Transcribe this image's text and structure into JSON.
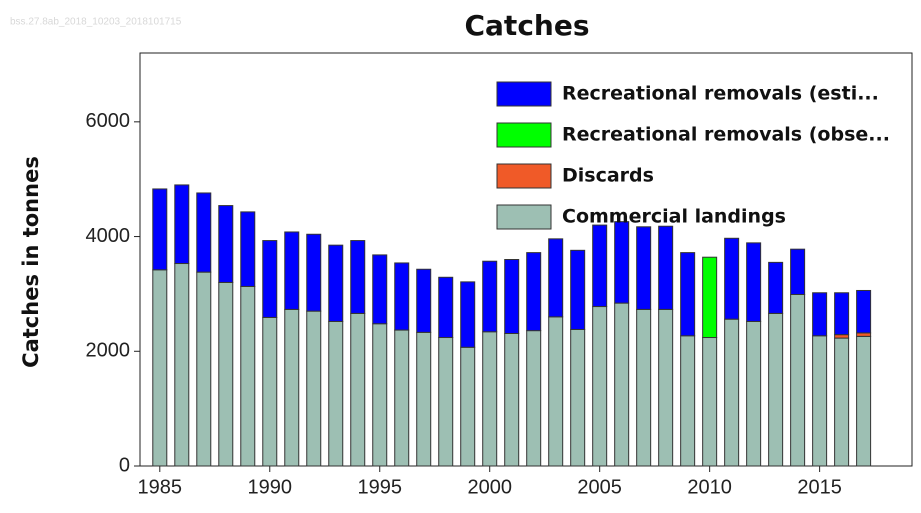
{
  "chart_data": {
    "type": "stacked-bar",
    "title": "Catches",
    "subtitle": "bss.27.8ab_2018_10203_2018101715",
    "y_label": "Catches in tonnes",
    "x": [
      1985,
      1986,
      1987,
      1988,
      1989,
      1990,
      1991,
      1992,
      1993,
      1994,
      1995,
      1996,
      1997,
      1998,
      1999,
      2000,
      2001,
      2002,
      2003,
      2004,
      2005,
      2006,
      2007,
      2008,
      2009,
      2010,
      2011,
      2012,
      2013,
      2014,
      2015,
      2016,
      2017
    ],
    "xlim": [
      1984.1,
      2019.2
    ],
    "xticks": [
      1985,
      1990,
      1995,
      2000,
      2005,
      2010,
      2015
    ],
    "ylim": [
      0,
      7200
    ],
    "yticks": [
      0,
      2000,
      4000,
      6000
    ],
    "legend": "top-right",
    "series": [
      {
        "name": "Commercial landings",
        "color": "#9dbfb3",
        "values": [
          3420,
          3530,
          3380,
          3200,
          3130,
          2590,
          2730,
          2700,
          2520,
          2660,
          2480,
          2370,
          2330,
          2240,
          2070,
          2340,
          2310,
          2360,
          2600,
          2380,
          2780,
          2840,
          2730,
          2730,
          2270,
          2240,
          2560,
          2520,
          2660,
          2990,
          2270,
          2230,
          2260
        ]
      },
      {
        "name": "Discards",
        "color": "#f05a28",
        "values": [
          0,
          0,
          0,
          0,
          0,
          0,
          0,
          0,
          0,
          0,
          0,
          0,
          0,
          0,
          0,
          0,
          0,
          0,
          0,
          0,
          0,
          0,
          0,
          0,
          0,
          0,
          0,
          0,
          0,
          0,
          0,
          60,
          60
        ]
      },
      {
        "name": "Recreational removals (obse...",
        "color": "#00ff00",
        "values": [
          0,
          0,
          0,
          0,
          0,
          0,
          0,
          0,
          0,
          0,
          0,
          0,
          0,
          0,
          0,
          0,
          0,
          0,
          0,
          0,
          0,
          0,
          0,
          0,
          0,
          1400,
          0,
          0,
          0,
          0,
          0,
          0,
          0
        ]
      },
      {
        "name": "Recreational removals (esti...",
        "color": "#0000ff",
        "values": [
          1410,
          1370,
          1380,
          1340,
          1300,
          1340,
          1350,
          1340,
          1330,
          1270,
          1200,
          1170,
          1100,
          1050,
          1140,
          1230,
          1290,
          1360,
          1360,
          1380,
          1420,
          1420,
          1440,
          1450,
          1450,
          0,
          1410,
          1370,
          890,
          790,
          750,
          730,
          740
        ]
      }
    ]
  }
}
